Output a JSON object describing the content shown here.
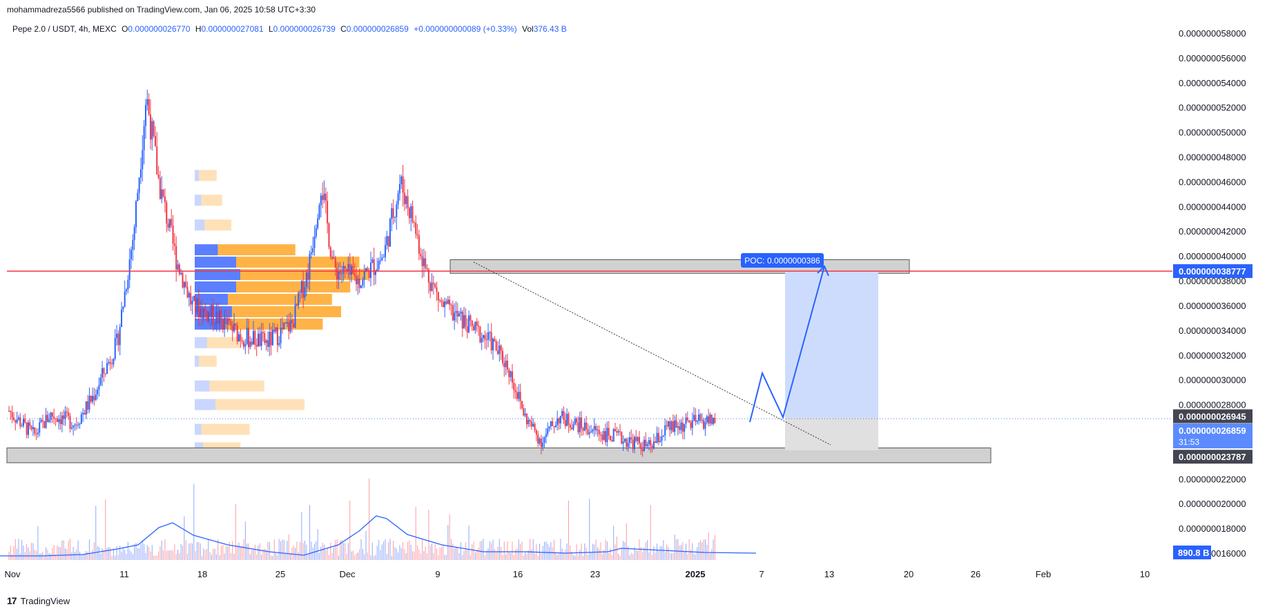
{
  "header": {
    "published": "mohammadreza5566 published on TradingView.com, Jan 06, 2025 10:58 UTC+3:30"
  },
  "legend": {
    "symbol": "Pepe 2.0 / USDT, 4h, MEXC",
    "o_label": "O",
    "o": "0.000000026770",
    "h_label": "H",
    "h": "0.000000027081",
    "l_label": "L",
    "l": "0.000000026739",
    "c_label": "C",
    "c": "0.000000026859",
    "change": "+0.000000000089 (+0.33%)",
    "vol_label": "Vol",
    "vol": "376.43 B"
  },
  "footer": {
    "brand": "TradingView"
  },
  "colors": {
    "up": "#2962ff",
    "down": "#f23645",
    "resistance": "#f23645",
    "volume_ma": "#2962ff",
    "badge_dark": "#434651",
    "badge_blue": "#2962ff"
  },
  "chart_data": {
    "type": "candlestick",
    "symbol": "Pepe 2.0 / USDT",
    "interval": "4h",
    "exchange": "MEXC",
    "x_ticks": [
      "Nov",
      "11",
      "18",
      "25",
      "Dec",
      "9",
      "16",
      "23",
      "2025",
      "7",
      "13",
      "20",
      "26",
      "Feb",
      "10"
    ],
    "y_ticks": [
      "0.000000058000",
      "0.000000056000",
      "0.000000054000",
      "0.000000052000",
      "0.000000050000",
      "0.000000048000",
      "0.000000046000",
      "0.000000044000",
      "0.000000042000",
      "0.000000040000",
      "0.000000038000",
      "0.000000036000",
      "0.000000034000",
      "0.000000032000",
      "0.000000030000",
      "0.000000028000",
      "0.000000026000",
      "0.000000024000",
      "0.000000022000",
      "0.000000020000",
      "0.000000018000",
      "0.000000016000"
    ],
    "y_range": [
      1.55e-08,
      5.85e-08
    ],
    "price_path": [
      [
        0,
        2.75e-08
      ],
      [
        6,
        2.55e-08
      ],
      [
        10,
        2.72e-08
      ],
      [
        16,
        2.65e-08
      ],
      [
        20,
        2.85e-08
      ],
      [
        26,
        3.3e-08
      ],
      [
        30,
        4.2e-08
      ],
      [
        33,
        5.3e-08
      ],
      [
        36,
        4.6e-08
      ],
      [
        40,
        4e-08
      ],
      [
        44,
        3.6e-08
      ],
      [
        50,
        3.5e-08
      ],
      [
        56,
        3.35e-08
      ],
      [
        62,
        3.3e-08
      ],
      [
        68,
        3.45e-08
      ],
      [
        72,
        3.9e-08
      ],
      [
        75,
        4.6e-08
      ],
      [
        78,
        3.9e-08
      ],
      [
        84,
        3.8e-08
      ],
      [
        90,
        4e-08
      ],
      [
        94,
        4.6e-08
      ],
      [
        97,
        4.3e-08
      ],
      [
        100,
        3.9e-08
      ],
      [
        104,
        3.6e-08
      ],
      [
        110,
        3.45e-08
      ],
      [
        116,
        3.3e-08
      ],
      [
        120,
        3.1e-08
      ],
      [
        124,
        2.7e-08
      ],
      [
        128,
        2.5e-08
      ],
      [
        132,
        2.7e-08
      ],
      [
        138,
        2.62e-08
      ],
      [
        144,
        2.55e-08
      ],
      [
        150,
        2.5e-08
      ],
      [
        154,
        2.45e-08
      ],
      [
        158,
        2.6e-08
      ],
      [
        164,
        2.65e-08
      ],
      [
        170,
        2.68e-08
      ]
    ],
    "current_price": "0.000000026859",
    "countdown": "31:53",
    "price_badges": {
      "resistance": "0.000000038777",
      "upper": "0.000000026945",
      "support": "0.000000023787"
    },
    "poc_label": "POC: 0.0000000386",
    "volume_badge": "890.8 B",
    "annotations": {
      "resistance_line": 3.8777e-08,
      "resistance_zone": [
        3.86e-08,
        3.97e-08
      ],
      "support_zone": [
        2.33e-08,
        2.45e-08
      ],
      "target_box": [
        2.6945e-08,
        3.8777e-08
      ],
      "stop_box": [
        2.43e-08,
        2.6945e-08
      ]
    }
  }
}
